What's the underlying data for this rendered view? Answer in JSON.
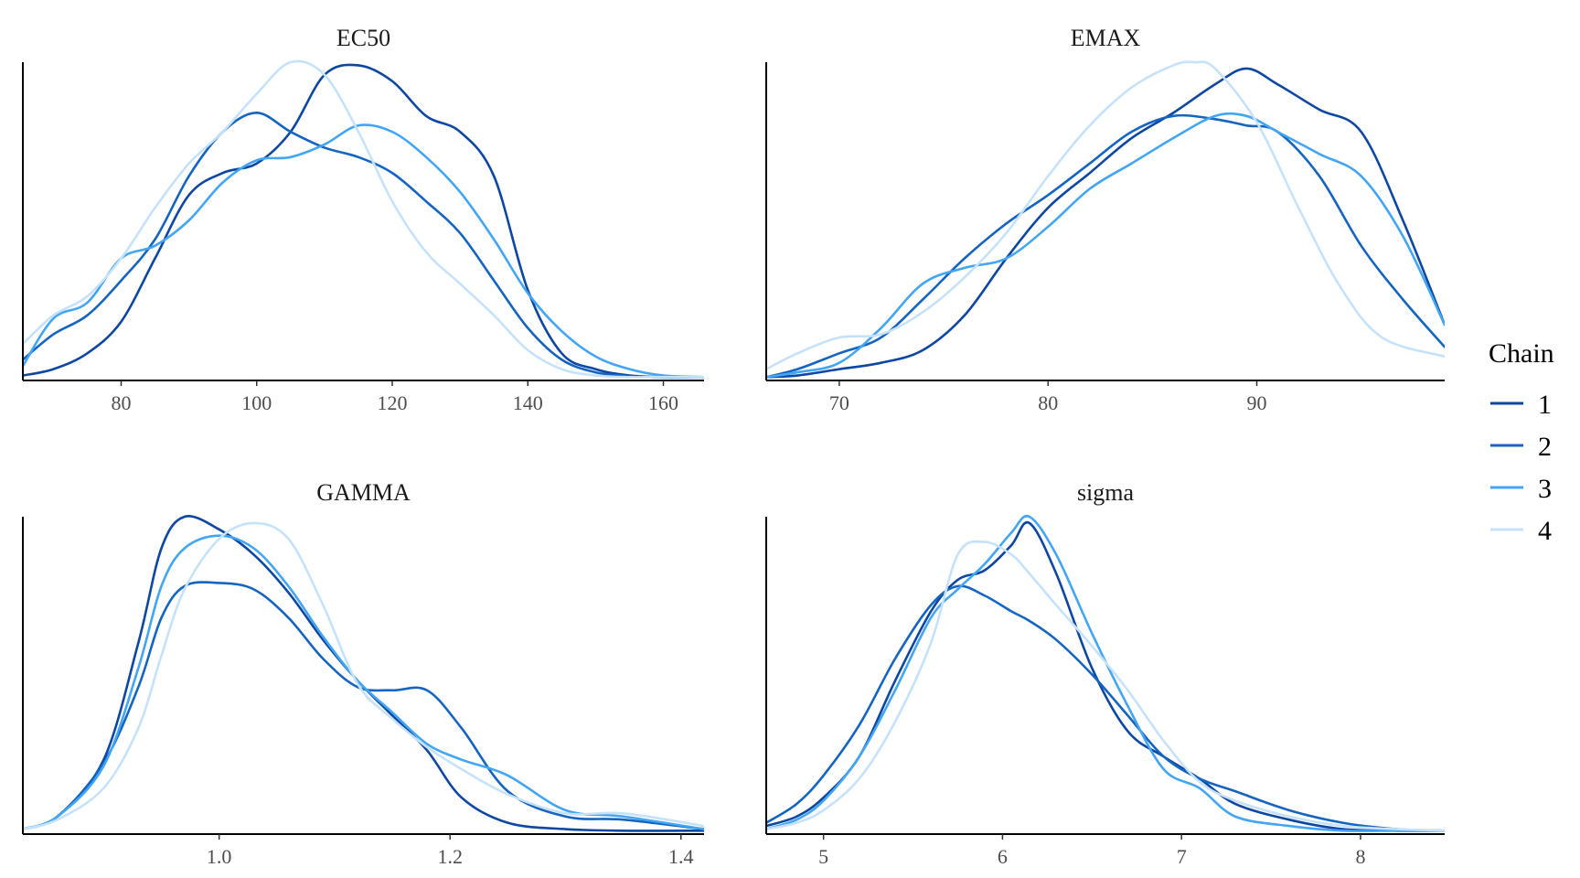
{
  "chart_data": [
    {
      "type": "line",
      "title": "EC50",
      "xlim": [
        65.5,
        166
      ],
      "ylim": [
        0,
        1
      ],
      "ticks": [
        80,
        100,
        120,
        140,
        160
      ],
      "tick_labels": [
        "80",
        "100",
        "120",
        "140",
        "160"
      ],
      "series": [
        {
          "name": "1",
          "x": [
            65.5,
            70,
            75,
            80,
            85,
            90,
            95,
            100,
            105,
            110,
            115,
            120,
            125,
            130,
            135,
            140,
            145,
            150,
            155,
            160,
            166
          ],
          "y": [
            0.01,
            0.03,
            0.08,
            0.18,
            0.38,
            0.58,
            0.65,
            0.68,
            0.78,
            0.96,
            0.99,
            0.94,
            0.83,
            0.78,
            0.64,
            0.28,
            0.08,
            0.03,
            0.01,
            0.005,
            0.005
          ]
        },
        {
          "name": "2",
          "x": [
            65.5,
            70,
            75,
            80,
            85,
            90,
            95,
            100,
            105,
            110,
            115,
            120,
            125,
            130,
            135,
            140,
            145,
            150,
            155,
            160,
            166
          ],
          "y": [
            0.06,
            0.14,
            0.2,
            0.31,
            0.44,
            0.64,
            0.78,
            0.84,
            0.78,
            0.73,
            0.7,
            0.65,
            0.56,
            0.46,
            0.31,
            0.16,
            0.06,
            0.02,
            0.008,
            0.004,
            0.005
          ]
        },
        {
          "name": "3",
          "x": [
            65.5,
            70,
            75,
            80,
            85,
            90,
            95,
            100,
            105,
            110,
            115,
            120,
            125,
            130,
            135,
            140,
            145,
            150,
            155,
            160,
            166
          ],
          "y": [
            0.04,
            0.19,
            0.24,
            0.38,
            0.42,
            0.5,
            0.62,
            0.69,
            0.7,
            0.74,
            0.8,
            0.78,
            0.7,
            0.59,
            0.44,
            0.27,
            0.15,
            0.07,
            0.03,
            0.01,
            0.005
          ]
        },
        {
          "name": "4",
          "x": [
            65.5,
            70,
            75,
            80,
            85,
            90,
            95,
            100,
            105,
            110,
            115,
            120,
            125,
            130,
            135,
            140,
            145,
            150,
            155,
            160,
            166
          ],
          "y": [
            0.11,
            0.2,
            0.26,
            0.38,
            0.54,
            0.68,
            0.78,
            0.9,
            1.0,
            0.96,
            0.78,
            0.56,
            0.4,
            0.3,
            0.2,
            0.09,
            0.03,
            0.01,
            0.005,
            0.005,
            0.005
          ]
        }
      ]
    },
    {
      "type": "line",
      "title": "EMAX",
      "xlim": [
        66.5,
        99
      ],
      "ylim": [
        0,
        1
      ],
      "ticks": [
        70,
        80,
        90
      ],
      "tick_labels": [
        "70",
        "80",
        "90"
      ],
      "series": [
        {
          "name": "1",
          "x": [
            66.5,
            68,
            70,
            72,
            74,
            76,
            78,
            80,
            82,
            84,
            86,
            88,
            89.5,
            91,
            93,
            95,
            97,
            99
          ],
          "y": [
            0.005,
            0.01,
            0.03,
            0.05,
            0.09,
            0.2,
            0.38,
            0.54,
            0.65,
            0.76,
            0.84,
            0.93,
            0.98,
            0.93,
            0.85,
            0.78,
            0.5,
            0.17
          ]
        },
        {
          "name": "2",
          "x": [
            66.5,
            68,
            70,
            72,
            74,
            76,
            78,
            80,
            82,
            84,
            86,
            88,
            89.5,
            91,
            93,
            95,
            97,
            99
          ],
          "y": [
            0.005,
            0.03,
            0.08,
            0.13,
            0.25,
            0.38,
            0.49,
            0.58,
            0.68,
            0.78,
            0.83,
            0.82,
            0.8,
            0.78,
            0.64,
            0.42,
            0.25,
            0.1
          ]
        },
        {
          "name": "3",
          "x": [
            66.5,
            68,
            70,
            72,
            74,
            76,
            78,
            80,
            82,
            84,
            86,
            88,
            89.5,
            91,
            93,
            95,
            97,
            99
          ],
          "y": [
            0.005,
            0.02,
            0.05,
            0.16,
            0.3,
            0.35,
            0.38,
            0.48,
            0.6,
            0.68,
            0.76,
            0.83,
            0.83,
            0.78,
            0.71,
            0.64,
            0.45,
            0.17
          ]
        },
        {
          "name": "4",
          "x": [
            66.5,
            68,
            70,
            72,
            74,
            76,
            78,
            80,
            82,
            84,
            86,
            87,
            88,
            90,
            92,
            94,
            96,
            99
          ],
          "y": [
            0.03,
            0.08,
            0.13,
            0.14,
            0.21,
            0.32,
            0.46,
            0.64,
            0.8,
            0.92,
            0.99,
            1.0,
            0.98,
            0.81,
            0.54,
            0.29,
            0.13,
            0.07
          ]
        }
      ]
    },
    {
      "type": "line",
      "title": "GAMMA",
      "xlim": [
        0.83,
        1.42
      ],
      "ylim": [
        0,
        1
      ],
      "ticks": [
        1.0,
        1.2,
        1.4
      ],
      "tick_labels": [
        "1.0",
        "1.2",
        "1.4"
      ],
      "series": [
        {
          "name": "1",
          "x": [
            0.83,
            0.86,
            0.9,
            0.93,
            0.95,
            0.97,
            1.0,
            1.03,
            1.06,
            1.09,
            1.12,
            1.15,
            1.18,
            1.21,
            1.25,
            1.3,
            1.35,
            1.42
          ],
          "y": [
            0.01,
            0.05,
            0.23,
            0.6,
            0.9,
            1.0,
            0.96,
            0.88,
            0.76,
            0.61,
            0.48,
            0.37,
            0.26,
            0.11,
            0.03,
            0.01,
            0.005,
            0.005
          ]
        },
        {
          "name": "2",
          "x": [
            0.83,
            0.86,
            0.9,
            0.93,
            0.95,
            0.97,
            1.0,
            1.03,
            1.06,
            1.09,
            1.12,
            1.15,
            1.18,
            1.21,
            1.25,
            1.3,
            1.35,
            1.42
          ],
          "y": [
            0.01,
            0.05,
            0.22,
            0.46,
            0.68,
            0.78,
            0.79,
            0.77,
            0.68,
            0.55,
            0.46,
            0.45,
            0.45,
            0.33,
            0.13,
            0.05,
            0.04,
            0.01
          ]
        },
        {
          "name": "3",
          "x": [
            0.83,
            0.86,
            0.9,
            0.93,
            0.95,
            0.97,
            1.0,
            1.03,
            1.06,
            1.09,
            1.12,
            1.15,
            1.18,
            1.21,
            1.25,
            1.3,
            1.35,
            1.42
          ],
          "y": [
            0.01,
            0.05,
            0.21,
            0.52,
            0.78,
            0.9,
            0.94,
            0.9,
            0.78,
            0.62,
            0.48,
            0.38,
            0.28,
            0.23,
            0.18,
            0.07,
            0.05,
            0.01
          ]
        },
        {
          "name": "4",
          "x": [
            0.83,
            0.86,
            0.9,
            0.93,
            0.95,
            0.97,
            1.0,
            1.03,
            1.06,
            1.09,
            1.12,
            1.15,
            1.18,
            1.21,
            1.25,
            1.3,
            1.35,
            1.42
          ],
          "y": [
            0.01,
            0.04,
            0.14,
            0.33,
            0.56,
            0.77,
            0.93,
            0.98,
            0.93,
            0.72,
            0.47,
            0.36,
            0.27,
            0.2,
            0.12,
            0.06,
            0.06,
            0.02
          ]
        }
      ]
    },
    {
      "type": "line",
      "title": "sigma",
      "xlim": [
        4.68,
        8.47
      ],
      "ylim": [
        0,
        1
      ],
      "ticks": [
        5,
        6,
        7,
        8
      ],
      "tick_labels": [
        "5",
        "6",
        "7",
        "8"
      ],
      "series": [
        {
          "name": "1",
          "x": [
            4.68,
            4.85,
            5.0,
            5.2,
            5.4,
            5.6,
            5.75,
            5.9,
            6.05,
            6.15,
            6.3,
            6.5,
            6.7,
            6.9,
            7.1,
            7.3,
            7.6,
            7.9,
            8.2,
            8.47
          ],
          "y": [
            0.02,
            0.05,
            0.11,
            0.24,
            0.48,
            0.7,
            0.8,
            0.83,
            0.91,
            0.98,
            0.82,
            0.52,
            0.32,
            0.24,
            0.17,
            0.09,
            0.04,
            0.01,
            0.005,
            0.005
          ]
        },
        {
          "name": "2",
          "x": [
            4.68,
            4.85,
            5.0,
            5.2,
            5.4,
            5.6,
            5.75,
            5.9,
            6.05,
            6.15,
            6.3,
            6.5,
            6.7,
            6.9,
            7.1,
            7.3,
            7.6,
            7.9,
            8.2,
            8.47
          ],
          "y": [
            0.03,
            0.09,
            0.18,
            0.34,
            0.55,
            0.72,
            0.78,
            0.75,
            0.7,
            0.67,
            0.61,
            0.5,
            0.37,
            0.24,
            0.17,
            0.13,
            0.07,
            0.03,
            0.01,
            0.005
          ]
        },
        {
          "name": "3",
          "x": [
            4.68,
            4.85,
            5.0,
            5.2,
            5.4,
            5.6,
            5.75,
            5.9,
            6.05,
            6.15,
            6.3,
            6.5,
            6.7,
            6.9,
            7.1,
            7.3,
            7.6,
            7.9,
            8.2,
            8.47
          ],
          "y": [
            0.01,
            0.04,
            0.1,
            0.24,
            0.45,
            0.68,
            0.77,
            0.85,
            0.95,
            1.0,
            0.88,
            0.63,
            0.4,
            0.2,
            0.14,
            0.05,
            0.02,
            0.005,
            0.005,
            0.005
          ]
        },
        {
          "name": "4",
          "x": [
            4.68,
            4.85,
            5.0,
            5.2,
            5.4,
            5.6,
            5.75,
            5.9,
            6.05,
            6.15,
            6.3,
            6.5,
            6.7,
            6.9,
            7.1,
            7.3,
            7.6,
            7.9,
            8.2,
            8.47
          ],
          "y": [
            0.01,
            0.03,
            0.07,
            0.17,
            0.35,
            0.6,
            0.88,
            0.92,
            0.88,
            0.82,
            0.72,
            0.59,
            0.45,
            0.29,
            0.16,
            0.1,
            0.05,
            0.02,
            0.01,
            0.005
          ]
        }
      ]
    }
  ],
  "legend": {
    "title": "Chain",
    "items": [
      {
        "label": "1",
        "color": "#0d47a1"
      },
      {
        "label": "2",
        "color": "#1565c0"
      },
      {
        "label": "3",
        "color": "#42a5f5"
      },
      {
        "label": "4",
        "color": "#c6e2fb"
      }
    ]
  }
}
